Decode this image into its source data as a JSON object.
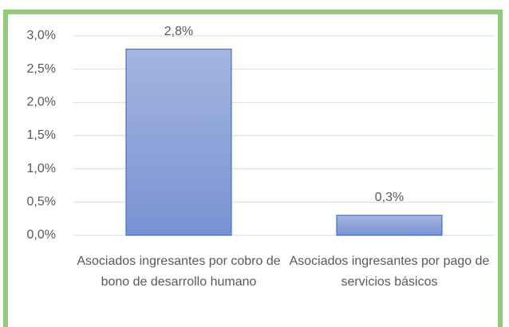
{
  "chart_data": {
    "type": "bar",
    "categories": [
      "Asociados ingresantes por cobro de bono de desarrollo humano",
      "Asociados ingresantes por pago de servicios básicos"
    ],
    "values": [
      2.8,
      0.3
    ],
    "value_labels": [
      "2,8%",
      "0,3%"
    ],
    "color": "#8ea4d8",
    "ylim": [
      0,
      3
    ],
    "yticks": [
      {
        "value": 0,
        "label": "0,0%"
      },
      {
        "value": 0.5,
        "label": "0,5%"
      },
      {
        "value": 1,
        "label": "1,0%"
      },
      {
        "value": 1.5,
        "label": "1,5%"
      },
      {
        "value": 2,
        "label": "2,0%"
      },
      {
        "value": 2.5,
        "label": "2,5%"
      },
      {
        "value": 3,
        "label": "3,0%"
      }
    ],
    "grid": true
  }
}
